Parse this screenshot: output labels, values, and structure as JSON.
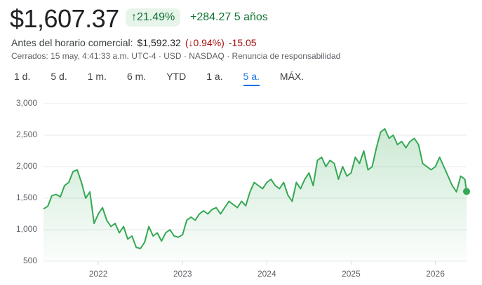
{
  "header": {
    "price": "$1,607.37",
    "change_pct": "↑21.49%",
    "change_abs": "+284.27",
    "period": "5 años",
    "premarket_label": "Antes del horario comercial:",
    "premarket_price": "$1,592.32",
    "premarket_pct": "(↓0.94%)",
    "premarket_abs": "-15.05",
    "meta": "Cerrados: 15 may, 4:41:33 a.m. UTC-4 · USD · NASDAQ · Renuncia de responsabilidad"
  },
  "tabs": {
    "items": [
      "1 d.",
      "5 d.",
      "1 m.",
      "6 m.",
      "YTD",
      "1 a.",
      "5 a.",
      "MÁX."
    ],
    "selected": 6
  },
  "chart_data": {
    "type": "line",
    "grid": true,
    "xlim": [
      2021.35,
      2026.37
    ],
    "xticks": [
      2022,
      2023,
      2024,
      2025,
      2026
    ],
    "ylim": [
      500,
      3000
    ],
    "yticks": [
      {
        "value": 3000,
        "label": "3,000"
      },
      {
        "value": 2500,
        "label": "2,500"
      },
      {
        "value": 2000,
        "label": "2,000"
      },
      {
        "value": 1500,
        "label": "1,500"
      },
      {
        "value": 1000,
        "label": "1,000"
      },
      500
    ],
    "series": [
      {
        "color": "#34a853",
        "x": [
          2021.35,
          2021.4,
          2021.45,
          2021.5,
          2021.55,
          2021.6,
          2021.65,
          2021.7,
          2021.75,
          2021.8,
          2021.85,
          2021.9,
          2021.95,
          2022,
          2022.05,
          2022.1,
          2022.15,
          2022.2,
          2022.25,
          2022.3,
          2022.35,
          2022.4,
          2022.45,
          2022.5,
          2022.55,
          2022.6,
          2022.65,
          2022.7,
          2022.75,
          2022.8,
          2022.85,
          2022.9,
          2022.95,
          2023,
          2023.05,
          2023.1,
          2023.15,
          2023.2,
          2023.25,
          2023.3,
          2023.35,
          2023.4,
          2023.45,
          2023.5,
          2023.55,
          2023.6,
          2023.65,
          2023.7,
          2023.75,
          2023.8,
          2023.85,
          2023.9,
          2023.95,
          2024,
          2024.05,
          2024.1,
          2024.15,
          2024.2,
          2024.25,
          2024.3,
          2024.35,
          2024.4,
          2024.45,
          2024.5,
          2024.55,
          2024.6,
          2024.65,
          2024.7,
          2024.75,
          2024.8,
          2024.85,
          2024.9,
          2024.95,
          2025,
          2025.05,
          2025.1,
          2025.15,
          2025.2,
          2025.25,
          2025.3,
          2025.35,
          2025.4,
          2025.45,
          2025.5,
          2025.55,
          2025.6,
          2025.65,
          2025.7,
          2025.75,
          2025.8,
          2025.85,
          2025.9,
          2025.95,
          2026,
          2026.05,
          2026.1,
          2026.15,
          2026.2,
          2026.25,
          2026.3,
          2026.35,
          2026.37
        ],
        "values": [
          1330,
          1370,
          1540,
          1560,
          1520,
          1700,
          1750,
          1920,
          1950,
          1750,
          1500,
          1600,
          1100,
          1250,
          1350,
          1150,
          1050,
          1100,
          950,
          1050,
          850,
          900,
          720,
          700,
          800,
          1050,
          900,
          950,
          820,
          950,
          1000,
          900,
          880,
          920,
          1150,
          1200,
          1150,
          1250,
          1300,
          1250,
          1320,
          1350,
          1250,
          1350,
          1450,
          1400,
          1350,
          1450,
          1380,
          1600,
          1750,
          1700,
          1650,
          1750,
          1800,
          1700,
          1650,
          1750,
          1550,
          1450,
          1750,
          1650,
          1800,
          1900,
          1700,
          2100,
          2150,
          2000,
          2100,
          2050,
          1800,
          2000,
          1850,
          1900,
          2150,
          2050,
          2250,
          1950,
          2000,
          2300,
          2550,
          2600,
          2450,
          2500,
          2350,
          2400,
          2300,
          2400,
          2450,
          2350,
          2050,
          2000,
          1950,
          2000,
          2150,
          2000,
          1850,
          1700,
          1600,
          1850,
          1800,
          1607
        ]
      }
    ]
  }
}
